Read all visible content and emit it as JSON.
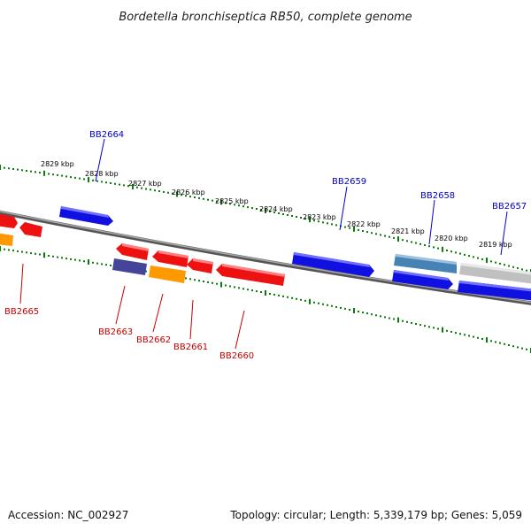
{
  "title": "Bordetella bronchiseptica RB50, complete genome",
  "footer": {
    "accession": "Accession: NC_002927",
    "summary": "Topology: circular; Length: 5,339,179 bp; Genes: 5,059"
  },
  "ruler": [
    {
      "label": "2829 kbp"
    },
    {
      "label": "2828 kbp"
    },
    {
      "label": "2827 kbp"
    },
    {
      "label": "2826 kbp"
    },
    {
      "label": "2825 kbp"
    },
    {
      "label": "2824 kbp"
    },
    {
      "label": "2823 kbp"
    },
    {
      "label": "2822 kbp"
    },
    {
      "label": "2821 kbp"
    },
    {
      "label": "2820 kbp"
    },
    {
      "label": "2819 kbp"
    }
  ],
  "genes_top": [
    {
      "label": "BB2664",
      "color": "#0000c8"
    },
    {
      "label": "BB2659",
      "color": "#0000c8"
    },
    {
      "label": "BB2658",
      "color": "#0000c8"
    },
    {
      "label": "BB2657",
      "color": "#0000c8"
    }
  ],
  "genes_bottom": [
    {
      "label": "BB2665",
      "color": "#c80000"
    },
    {
      "label": "BB2663",
      "color": "#c80000"
    },
    {
      "label": "BB2662",
      "color": "#c80000"
    },
    {
      "label": "BB2661",
      "color": "#c80000"
    },
    {
      "label": "BB2660",
      "color": "#c80000"
    }
  ],
  "colors": {
    "forward": "#1010e0",
    "reverse": "#ee1111",
    "orange": "#ff9900",
    "purple": "#444499",
    "steel": "#4682b4",
    "grey": "#c0c0c0",
    "tick": "#0a7a0a",
    "backbone": "#777777"
  }
}
